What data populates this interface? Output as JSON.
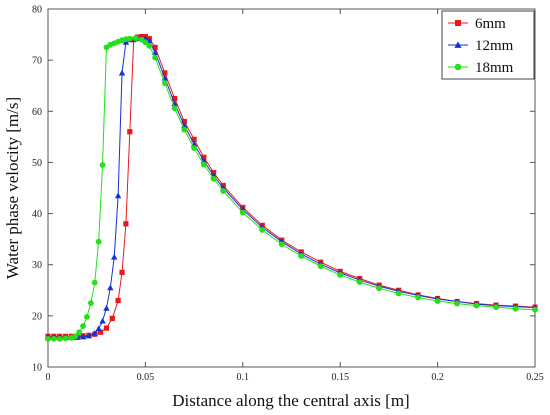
{
  "chart_data": {
    "type": "line",
    "title": "",
    "xlabel": "Distance along the central axis [m]",
    "ylabel": "Water phase velocity [m/s]",
    "xlim": [
      0,
      0.25
    ],
    "ylim": [
      10,
      80
    ],
    "x_ticks": [
      0,
      0.05,
      0.1,
      0.15,
      0.2,
      0.25
    ],
    "x_tick_labels": [
      "0",
      "0.05",
      "0.1",
      "0.15",
      "0.2",
      "0.25"
    ],
    "y_ticks": [
      10,
      20,
      30,
      40,
      50,
      60,
      70,
      80
    ],
    "y_tick_labels": [
      "10",
      "20",
      "30",
      "40",
      "50",
      "60",
      "70",
      "80"
    ],
    "grid": false,
    "legend_position": "top-right",
    "series": [
      {
        "name": "6mm",
        "color": "#e8191e",
        "marker": "square",
        "x": [
          0.0,
          0.003,
          0.006,
          0.009,
          0.012,
          0.015,
          0.018,
          0.021,
          0.024,
          0.027,
          0.03,
          0.033,
          0.036,
          0.038,
          0.04,
          0.042,
          0.044,
          0.046,
          0.048,
          0.05,
          0.052,
          0.055,
          0.06,
          0.065,
          0.07,
          0.075,
          0.08,
          0.085,
          0.09,
          0.1,
          0.11,
          0.12,
          0.13,
          0.14,
          0.15,
          0.16,
          0.17,
          0.18,
          0.19,
          0.2,
          0.21,
          0.22,
          0.23,
          0.24,
          0.25
        ],
        "values": [
          16.0,
          16.0,
          16.0,
          16.0,
          16.0,
          16.0,
          16.1,
          16.2,
          16.4,
          16.8,
          17.6,
          19.5,
          23.0,
          28.5,
          38.0,
          56.0,
          74.0,
          74.5,
          74.6,
          74.6,
          74.2,
          72.5,
          67.5,
          62.5,
          58.0,
          54.5,
          51.0,
          48.0,
          45.5,
          41.2,
          37.7,
          34.8,
          32.5,
          30.5,
          28.7,
          27.3,
          26.0,
          25.0,
          24.1,
          23.4,
          22.8,
          22.4,
          22.1,
          21.9,
          21.7
        ]
      },
      {
        "name": "12mm",
        "color": "#1530d8",
        "marker": "triangle",
        "x": [
          0.0,
          0.003,
          0.006,
          0.009,
          0.012,
          0.015,
          0.018,
          0.021,
          0.024,
          0.026,
          0.028,
          0.03,
          0.032,
          0.034,
          0.036,
          0.038,
          0.04,
          0.042,
          0.045,
          0.048,
          0.05,
          0.052,
          0.055,
          0.06,
          0.065,
          0.07,
          0.075,
          0.08,
          0.085,
          0.09,
          0.1,
          0.11,
          0.12,
          0.13,
          0.14,
          0.15,
          0.16,
          0.17,
          0.18,
          0.19,
          0.2,
          0.21,
          0.22,
          0.23,
          0.24,
          0.25
        ],
        "values": [
          15.8,
          15.8,
          15.8,
          15.8,
          15.8,
          15.8,
          15.9,
          16.1,
          16.6,
          17.5,
          19.0,
          21.5,
          25.5,
          31.5,
          43.5,
          67.5,
          73.5,
          74.0,
          74.2,
          74.3,
          74.2,
          73.8,
          71.5,
          66.5,
          61.5,
          57.2,
          53.6,
          50.3,
          47.4,
          45.0,
          40.8,
          37.3,
          34.5,
          32.1,
          30.1,
          28.4,
          27.0,
          25.8,
          24.8,
          24.0,
          23.3,
          22.8,
          22.3,
          22.0,
          21.8,
          21.6
        ]
      },
      {
        "name": "18mm",
        "color": "#22e01a",
        "marker": "circle",
        "x": [
          0.0,
          0.003,
          0.006,
          0.009,
          0.012,
          0.014,
          0.016,
          0.018,
          0.02,
          0.022,
          0.024,
          0.026,
          0.028,
          0.03,
          0.032,
          0.034,
          0.036,
          0.038,
          0.04,
          0.042,
          0.045,
          0.048,
          0.05,
          0.052,
          0.055,
          0.06,
          0.065,
          0.07,
          0.075,
          0.08,
          0.085,
          0.09,
          0.1,
          0.11,
          0.12,
          0.13,
          0.14,
          0.15,
          0.16,
          0.17,
          0.18,
          0.19,
          0.2,
          0.21,
          0.22,
          0.23,
          0.24,
          0.25
        ],
        "values": [
          15.5,
          15.5,
          15.5,
          15.6,
          15.7,
          16.0,
          16.8,
          18.0,
          19.8,
          22.5,
          26.5,
          34.5,
          49.5,
          72.5,
          73.0,
          73.3,
          73.6,
          73.9,
          74.1,
          74.2,
          74.3,
          74.0,
          73.5,
          72.8,
          70.5,
          65.5,
          60.6,
          56.4,
          52.8,
          49.6,
          46.8,
          44.4,
          40.2,
          36.8,
          34.0,
          31.7,
          29.7,
          28.0,
          26.6,
          25.4,
          24.4,
          23.6,
          22.9,
          22.4,
          22.0,
          21.7,
          21.4,
          21.2
        ]
      }
    ]
  }
}
